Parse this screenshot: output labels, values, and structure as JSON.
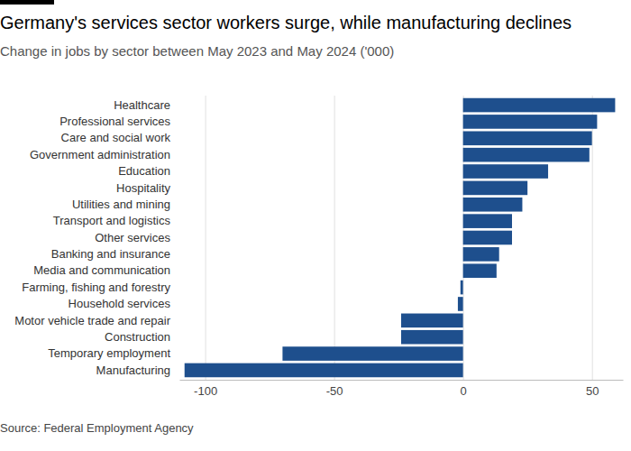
{
  "chart_data": {
    "type": "bar",
    "orientation": "horizontal",
    "title": "Germany's services sector workers surge, while manufacturing declines",
    "subtitle": "Change in jobs by sector between May 2023 and May 2024 ('000)",
    "source": "Source: Federal Employment Agency",
    "categories": [
      "Healthcare",
      "Professional services",
      "Care and social work",
      "Government administration",
      "Education",
      "Hospitality",
      "Utilities and mining",
      "Transport and logistics",
      "Other services",
      "Banking and insurance",
      "Media and communication",
      "Farming, fishing and forestry",
      "Household services",
      "Motor vehicle trade and repair",
      "Construction",
      "Temporary employment",
      "Manufacturing"
    ],
    "values": [
      59,
      52,
      50,
      49,
      33,
      25,
      23,
      19,
      19,
      14,
      13,
      -1,
      -2,
      -24,
      -24,
      -70,
      -108
    ],
    "color": "#1e4f8d",
    "xlim": [
      -110,
      62
    ],
    "xticks": [
      -100,
      -50,
      0,
      50
    ],
    "grid": true
  }
}
